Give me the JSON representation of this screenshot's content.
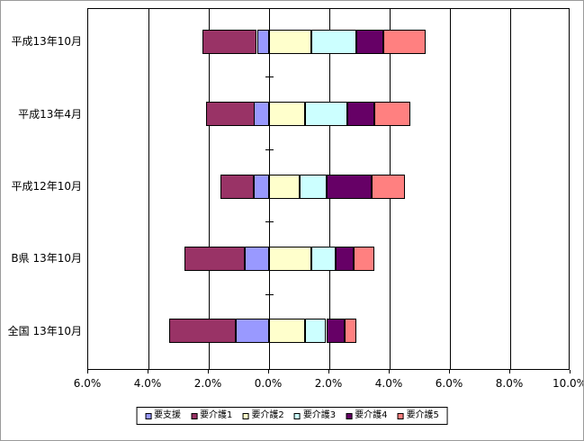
{
  "chart_data": {
    "type": "bar",
    "orientation": "horizontal",
    "diverging": true,
    "title": "",
    "xlabel": "",
    "ylabel": "",
    "grid": true,
    "categories": [
      "平成13年10月",
      "平成13年4月",
      "平成12年10月",
      "B県 13年10月",
      "全国 13年10月"
    ],
    "series": [
      {
        "name": "要支援",
        "color": "#9999FF",
        "side": "left",
        "values": [
          0.4,
          0.5,
          0.5,
          0.8,
          1.1
        ]
      },
      {
        "name": "要介護1",
        "color": "#993366",
        "side": "left",
        "values": [
          1.8,
          1.6,
          1.1,
          2.0,
          2.2
        ]
      },
      {
        "name": "要介護2",
        "color": "#FFFFCC",
        "side": "right",
        "values": [
          1.4,
          1.2,
          1.0,
          1.4,
          1.2
        ]
      },
      {
        "name": "要介護3",
        "color": "#CCFFFF",
        "side": "right",
        "values": [
          1.5,
          1.4,
          0.9,
          0.8,
          0.7
        ]
      },
      {
        "name": "要介護4",
        "color": "#660066",
        "side": "right",
        "values": [
          0.9,
          0.9,
          1.5,
          0.6,
          0.6
        ]
      },
      {
        "name": "要介護5",
        "color": "#FF8080",
        "side": "right",
        "values": [
          1.4,
          1.2,
          1.1,
          0.7,
          0.4
        ]
      }
    ],
    "x_axis": {
      "min": -6,
      "max": 10,
      "tick_step": 2,
      "tick_labels": [
        "6.0%",
        "4.0%",
        "2.0%",
        "0.0%",
        "2.0%",
        "4.0%",
        "6.0%",
        "8.0%",
        "10.0%"
      ]
    },
    "legend": {
      "position": "bottom",
      "entries": [
        "要支援",
        "要介護1",
        "要介護2",
        "要介護3",
        "要介護4",
        "要介護5"
      ]
    },
    "colors": {
      "axis": "#000000",
      "gridline": "#000000",
      "plot_background": "#FFFFFF",
      "chart_background": "#FFFFFF"
    }
  }
}
